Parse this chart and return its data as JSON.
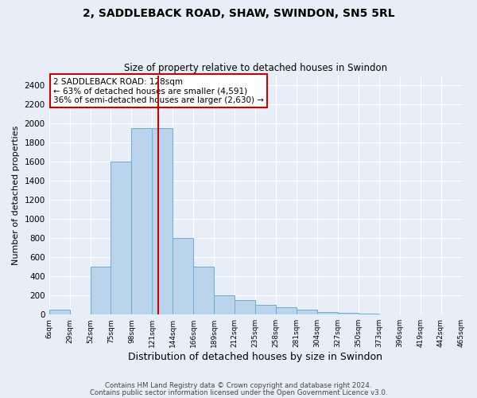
{
  "title": "2, SADDLEBACK ROAD, SHAW, SWINDON, SN5 5RL",
  "subtitle": "Size of property relative to detached houses in Swindon",
  "xlabel": "Distribution of detached houses by size in Swindon",
  "ylabel": "Number of detached properties",
  "bar_color": "#bad4ec",
  "bar_edge_color": "#6aadd5",
  "background_color": "#e8eef8",
  "grid_color": "#ffffff",
  "bin_labels": [
    "6sqm",
    "29sqm",
    "52sqm",
    "75sqm",
    "98sqm",
    "121sqm",
    "144sqm",
    "166sqm",
    "189sqm",
    "212sqm",
    "235sqm",
    "258sqm",
    "281sqm",
    "304sqm",
    "327sqm",
    "350sqm",
    "373sqm",
    "396sqm",
    "419sqm",
    "442sqm",
    "465sqm"
  ],
  "heights": [
    50,
    0,
    500,
    1600,
    1950,
    1950,
    800,
    500,
    200,
    150,
    100,
    75,
    50,
    30,
    20,
    10,
    5,
    5,
    5,
    5,
    0
  ],
  "property_size_bin": 5,
  "red_line_color": "#cc0000",
  "annotation_text": "2 SADDLEBACK ROAD: 128sqm\n← 63% of detached houses are smaller (4,591)\n36% of semi-detached houses are larger (2,630) →",
  "annotation_box_color": "#ffffff",
  "annotation_border_color": "#cc0000",
  "footer_line1": "Contains HM Land Registry data © Crown copyright and database right 2024.",
  "footer_line2": "Contains public sector information licensed under the Open Government Licence v3.0.",
  "ylim": [
    0,
    2500
  ],
  "yticks": [
    0,
    200,
    400,
    600,
    800,
    1000,
    1200,
    1400,
    1600,
    1800,
    2000,
    2200,
    2400
  ],
  "title_fontsize": 10,
  "subtitle_fontsize": 8.5,
  "ylabel_fontsize": 8,
  "xlabel_fontsize": 9
}
